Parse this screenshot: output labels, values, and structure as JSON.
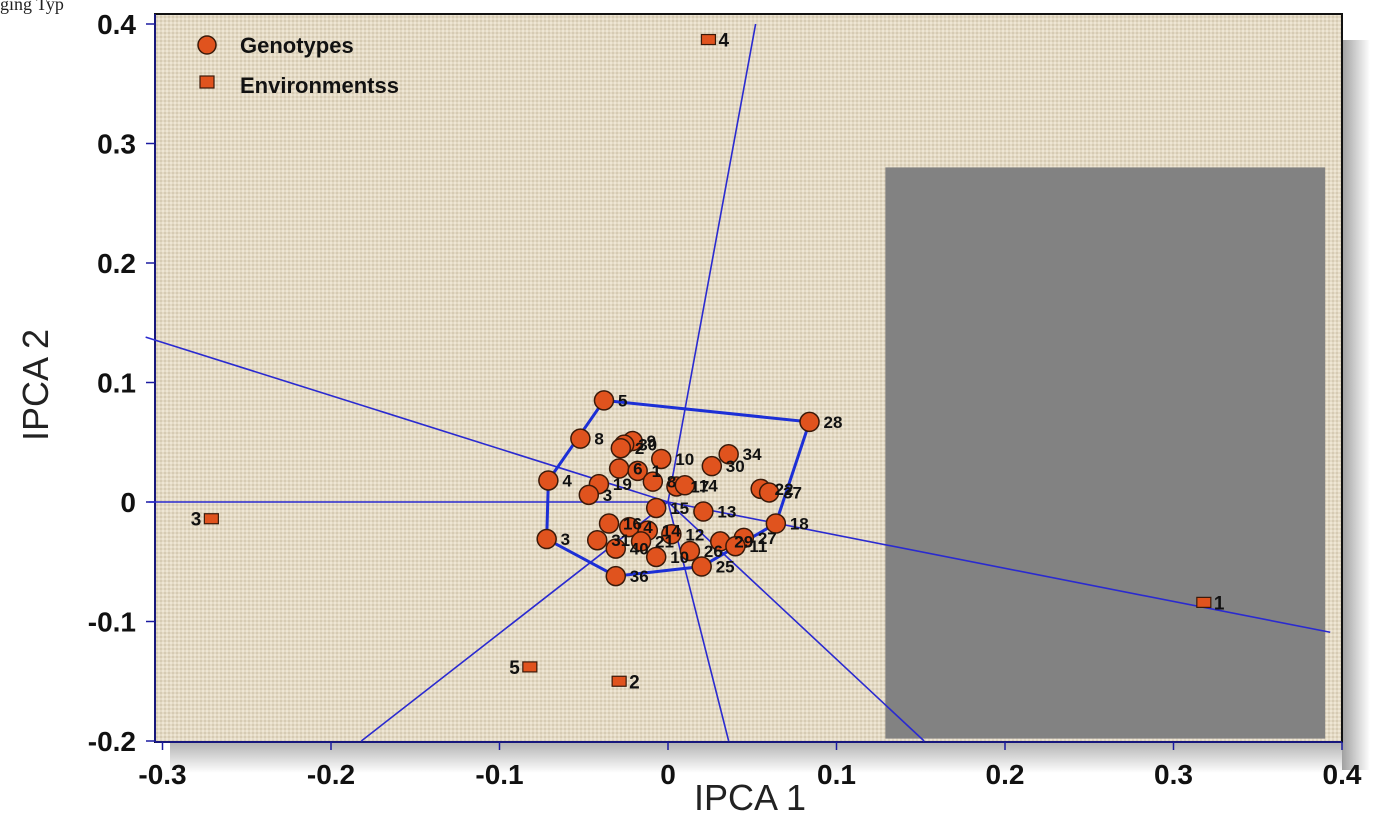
{
  "caption": {
    "text": "ging Typ"
  },
  "colors": {
    "plot_bg": "#e3d9c4",
    "shade": "#828282",
    "hull": "#1c2fd6",
    "rays": "#2a2ad0",
    "marker_fill": "#e0531e",
    "marker_stroke": "#3a1a0a"
  },
  "legend": {
    "placement": "top-left",
    "genotypes_label": "Genotypes",
    "environments_label": "Environmentss",
    "genotypes_icon": "circle-icon",
    "environments_icon": "square-icon"
  },
  "chart_data": {
    "type": "scatter",
    "title": "",
    "xlabel": "IPCA 1",
    "ylabel": "IPCA 2",
    "xlim": [
      -0.32,
      0.4
    ],
    "ylim": [
      -0.2,
      0.405
    ],
    "x_ticks": [
      "-0.3",
      "-0.2",
      "-0.1",
      "0",
      "0.1",
      "0.2",
      "0.3",
      "0.4"
    ],
    "y_ticks": [
      "0.4",
      "0.3",
      "0.2",
      "0.1",
      "0",
      "-0.1",
      "-0.2"
    ],
    "grid": false,
    "series": [
      {
        "name": "Genotypes",
        "marker": "circle",
        "points": [
          {
            "label": "5",
            "x": -0.038,
            "y": 0.085
          },
          {
            "label": "28",
            "x": 0.084,
            "y": 0.067
          },
          {
            "label": "8",
            "x": -0.052,
            "y": 0.053
          },
          {
            "label": "9",
            "x": -0.021,
            "y": 0.051
          },
          {
            "label": "30",
            "x": -0.026,
            "y": 0.048
          },
          {
            "label": "2",
            "x": -0.028,
            "y": 0.045
          },
          {
            "label": "10",
            "x": -0.004,
            "y": 0.036
          },
          {
            "label": "34",
            "x": 0.036,
            "y": 0.04
          },
          {
            "label": "30",
            "x": 0.026,
            "y": 0.03
          },
          {
            "label": "6",
            "x": -0.029,
            "y": 0.028
          },
          {
            "label": "1",
            "x": -0.018,
            "y": 0.026
          },
          {
            "label": "4",
            "x": -0.071,
            "y": 0.018
          },
          {
            "label": "19",
            "x": -0.041,
            "y": 0.015
          },
          {
            "label": "8",
            "x": -0.009,
            "y": 0.017
          },
          {
            "label": "17",
            "x": 0.005,
            "y": 0.013
          },
          {
            "label": "14",
            "x": 0.01,
            "y": 0.014
          },
          {
            "label": "3",
            "x": -0.047,
            "y": 0.006
          },
          {
            "label": "22",
            "x": 0.055,
            "y": 0.011
          },
          {
            "label": "37",
            "x": 0.06,
            "y": 0.008
          },
          {
            "label": "15",
            "x": -0.007,
            "y": -0.005
          },
          {
            "label": "13",
            "x": 0.021,
            "y": -0.008
          },
          {
            "label": "18",
            "x": 0.064,
            "y": -0.018
          },
          {
            "label": "16",
            "x": -0.035,
            "y": -0.018
          },
          {
            "label": "4",
            "x": -0.023,
            "y": -0.021
          },
          {
            "label": "14",
            "x": -0.012,
            "y": -0.024
          },
          {
            "label": "12",
            "x": 0.002,
            "y": -0.027
          },
          {
            "label": "3",
            "x": -0.072,
            "y": -0.031
          },
          {
            "label": "31",
            "x": -0.042,
            "y": -0.032
          },
          {
            "label": "21",
            "x": -0.016,
            "y": -0.033
          },
          {
            "label": "29",
            "x": 0.031,
            "y": -0.033
          },
          {
            "label": "27",
            "x": 0.045,
            "y": -0.03
          },
          {
            "label": "11",
            "x": 0.04,
            "y": -0.037
          },
          {
            "label": "40",
            "x": -0.031,
            "y": -0.039
          },
          {
            "label": "26",
            "x": 0.013,
            "y": -0.041
          },
          {
            "label": "10",
            "x": -0.007,
            "y": -0.046
          },
          {
            "label": "25",
            "x": 0.02,
            "y": -0.054
          },
          {
            "label": "36",
            "x": -0.031,
            "y": -0.062
          }
        ]
      },
      {
        "name": "Environmentss",
        "marker": "square",
        "points": [
          {
            "label": "4",
            "x": 0.024,
            "y": 0.387
          },
          {
            "label": "3",
            "x": -0.271,
            "y": -0.014
          },
          {
            "label": "1",
            "x": 0.318,
            "y": -0.084
          },
          {
            "label": "5",
            "x": -0.082,
            "y": -0.138
          },
          {
            "label": "2",
            "x": -0.029,
            "y": -0.15
          }
        ]
      }
    ],
    "polygon": [
      [
        -0.038,
        0.085
      ],
      [
        0.084,
        0.067
      ],
      [
        0.064,
        -0.018
      ],
      [
        0.02,
        -0.054
      ],
      [
        -0.031,
        -0.062
      ],
      [
        -0.072,
        -0.031
      ],
      [
        -0.071,
        0.018
      ]
    ],
    "rays": [
      {
        "from": [
          0.0,
          0.0
        ],
        "to": [
          0.052,
          0.4
        ]
      },
      {
        "from": [
          0.0,
          0.0
        ],
        "to": [
          0.393,
          -0.109
        ]
      },
      {
        "from": [
          0.0,
          0.0
        ],
        "to": [
          0.152,
          -0.2
        ]
      },
      {
        "from": [
          0.0,
          0.0
        ],
        "to": [
          0.036,
          -0.2
        ]
      },
      {
        "from": [
          0.0,
          0.0
        ],
        "to": [
          -0.182,
          -0.2
        ]
      },
      {
        "from": [
          0.0,
          0.0
        ],
        "to": [
          -0.308,
          0.0
        ]
      },
      {
        "from": [
          0.0,
          0.0
        ],
        "to": [
          -0.31,
          0.138
        ]
      }
    ],
    "shaded_region": {
      "x0": 0.129,
      "x1": 0.39,
      "y0": -0.198,
      "y1": 0.28
    }
  }
}
